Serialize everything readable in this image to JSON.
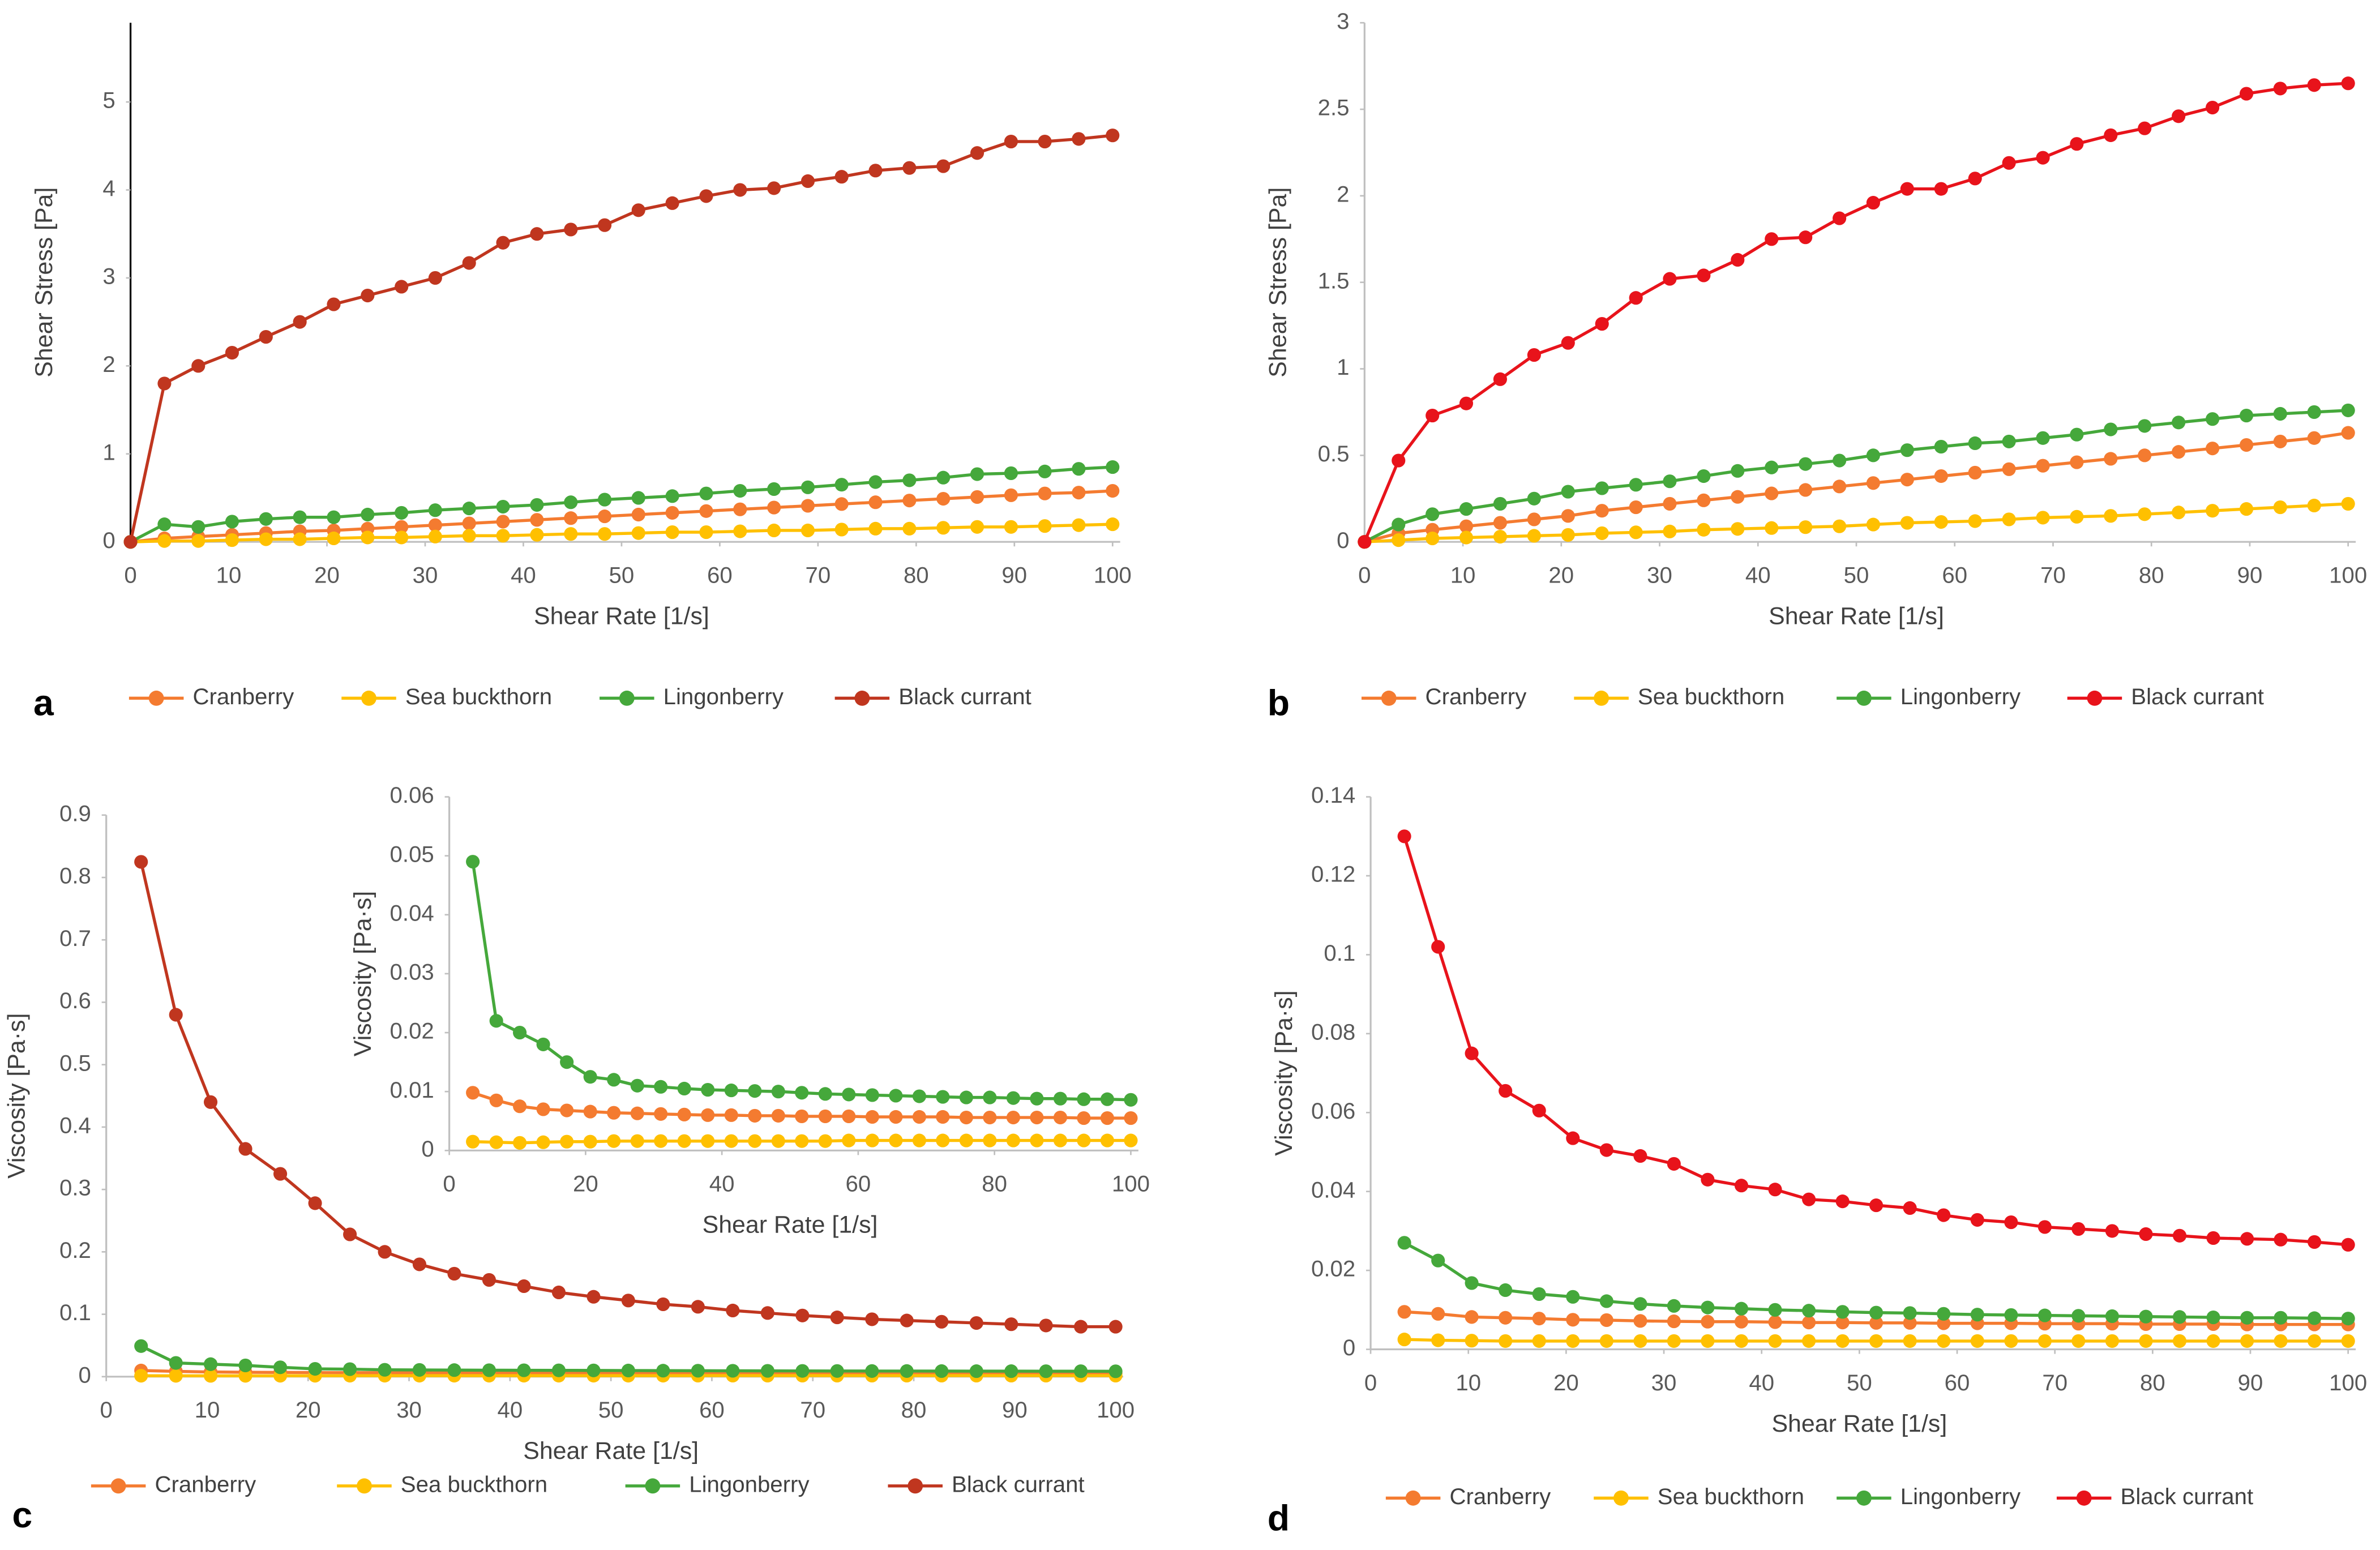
{
  "chart_data": [
    {
      "type": "line",
      "panel_label": "a",
      "x_label": "Shear Rate [1/s]",
      "y_label": "Shear Stress [Pa]",
      "x": [
        0,
        3.45,
        6.9,
        10.34,
        13.79,
        17.24,
        20.69,
        24.14,
        27.59,
        31.03,
        34.48,
        37.93,
        41.38,
        44.83,
        48.28,
        51.72,
        55.17,
        58.62,
        62.07,
        65.52,
        68.97,
        72.41,
        75.86,
        79.31,
        82.76,
        86.21,
        89.66,
        93.1,
        96.55,
        100
      ],
      "xlim": [
        0,
        100
      ],
      "xticks": [
        0,
        10,
        20,
        30,
        40,
        50,
        60,
        70,
        80,
        90,
        100
      ],
      "ylim": [
        0,
        5.9
      ],
      "yticks": [
        0,
        1,
        2,
        3,
        4,
        5
      ],
      "series": [
        {
          "name": "Cranberry",
          "color": "#F47B30",
          "values": [
            0,
            0.04,
            0.06,
            0.08,
            0.1,
            0.12,
            0.13,
            0.15,
            0.17,
            0.19,
            0.21,
            0.23,
            0.25,
            0.27,
            0.29,
            0.31,
            0.33,
            0.35,
            0.37,
            0.39,
            0.41,
            0.43,
            0.45,
            0.47,
            0.49,
            0.51,
            0.53,
            0.55,
            0.56,
            0.58
          ]
        },
        {
          "name": "Sea buckthorn",
          "color": "#FFC000",
          "values": [
            0,
            0.01,
            0.01,
            0.02,
            0.03,
            0.03,
            0.04,
            0.05,
            0.05,
            0.06,
            0.07,
            0.07,
            0.08,
            0.09,
            0.09,
            0.1,
            0.11,
            0.11,
            0.12,
            0.13,
            0.13,
            0.14,
            0.15,
            0.15,
            0.16,
            0.17,
            0.17,
            0.18,
            0.19,
            0.2
          ]
        },
        {
          "name": "Lingonberry",
          "color": "#45A83B",
          "values": [
            0,
            0.2,
            0.17,
            0.23,
            0.26,
            0.28,
            0.28,
            0.31,
            0.33,
            0.36,
            0.38,
            0.4,
            0.42,
            0.45,
            0.48,
            0.5,
            0.52,
            0.55,
            0.58,
            0.6,
            0.62,
            0.65,
            0.68,
            0.7,
            0.73,
            0.77,
            0.78,
            0.8,
            0.83,
            0.85
          ]
        },
        {
          "name": "Black currant",
          "color": "#C0361F",
          "values": [
            0,
            1.8,
            2.0,
            2.15,
            2.33,
            2.5,
            2.7,
            2.8,
            2.9,
            3.0,
            3.17,
            3.4,
            3.5,
            3.55,
            3.6,
            3.77,
            3.85,
            3.93,
            4.0,
            4.02,
            4.1,
            4.15,
            4.22,
            4.25,
            4.27,
            4.42,
            4.55,
            4.55,
            4.58,
            4.62
          ]
        }
      ]
    },
    {
      "type": "line",
      "panel_label": "b",
      "x_label": "Shear Rate [1/s]",
      "y_label": "Shear Stress [Pa]",
      "x": [
        0,
        3.45,
        6.9,
        10.34,
        13.79,
        17.24,
        20.69,
        24.14,
        27.59,
        31.03,
        34.48,
        37.93,
        41.38,
        44.83,
        48.28,
        51.72,
        55.17,
        58.62,
        62.07,
        65.52,
        68.97,
        72.41,
        75.86,
        79.31,
        82.76,
        86.21,
        89.66,
        93.1,
        96.55,
        100
      ],
      "xlim": [
        0,
        100
      ],
      "xticks": [
        0,
        10,
        20,
        30,
        40,
        50,
        60,
        70,
        80,
        90,
        100
      ],
      "ylim": [
        0,
        3
      ],
      "yticks": [
        0,
        0.5,
        1,
        1.5,
        2,
        2.5,
        3
      ],
      "series": [
        {
          "name": "Cranberry",
          "color": "#F47B30",
          "values": [
            0,
            0.05,
            0.07,
            0.09,
            0.11,
            0.13,
            0.15,
            0.18,
            0.2,
            0.22,
            0.24,
            0.26,
            0.28,
            0.3,
            0.32,
            0.34,
            0.36,
            0.38,
            0.4,
            0.42,
            0.44,
            0.46,
            0.48,
            0.5,
            0.52,
            0.54,
            0.56,
            0.58,
            0.6,
            0.63
          ]
        },
        {
          "name": "Sea buckthorn",
          "color": "#FFC000",
          "values": [
            0,
            0.01,
            0.02,
            0.025,
            0.03,
            0.035,
            0.04,
            0.05,
            0.055,
            0.06,
            0.07,
            0.075,
            0.08,
            0.085,
            0.09,
            0.1,
            0.11,
            0.115,
            0.12,
            0.13,
            0.14,
            0.145,
            0.15,
            0.16,
            0.17,
            0.18,
            0.19,
            0.2,
            0.21,
            0.22
          ]
        },
        {
          "name": "Lingonberry",
          "color": "#45A83B",
          "values": [
            0,
            0.1,
            0.16,
            0.19,
            0.22,
            0.25,
            0.29,
            0.31,
            0.33,
            0.35,
            0.38,
            0.41,
            0.43,
            0.45,
            0.47,
            0.5,
            0.53,
            0.55,
            0.57,
            0.58,
            0.6,
            0.62,
            0.65,
            0.67,
            0.69,
            0.71,
            0.73,
            0.74,
            0.75,
            0.76
          ]
        },
        {
          "name": "Black currant",
          "color": "#E8131B",
          "values": [
            0,
            0.47,
            0.73,
            0.8,
            0.94,
            1.08,
            1.15,
            1.26,
            1.41,
            1.52,
            1.54,
            1.63,
            1.75,
            1.76,
            1.87,
            1.96,
            2.04,
            2.04,
            2.1,
            2.19,
            2.22,
            2.3,
            2.35,
            2.39,
            2.46,
            2.51,
            2.59,
            2.62,
            2.64,
            2.65
          ]
        }
      ]
    },
    {
      "type": "line",
      "panel_label": "c",
      "x_label": "Shear Rate [1/s]",
      "y_label": "Viscosity [Pa·s]",
      "x": [
        3.45,
        6.9,
        10.34,
        13.79,
        17.24,
        20.69,
        24.14,
        27.59,
        31.03,
        34.48,
        37.93,
        41.38,
        44.83,
        48.28,
        51.72,
        55.17,
        58.62,
        62.07,
        65.52,
        68.97,
        72.41,
        75.86,
        79.31,
        82.76,
        86.21,
        89.66,
        93.1,
        96.55,
        100
      ],
      "xlim": [
        0,
        100
      ],
      "xticks": [
        0,
        10,
        20,
        30,
        40,
        50,
        60,
        70,
        80,
        90,
        100
      ],
      "ylim": [
        0,
        0.9
      ],
      "yticks": [
        0,
        0.1,
        0.2,
        0.3,
        0.4,
        0.5,
        0.6,
        0.7,
        0.8,
        0.9
      ],
      "series": [
        {
          "name": "Cranberry",
          "color": "#F47B30",
          "values": [
            0.0098,
            0.0085,
            0.0075,
            0.007,
            0.0068,
            0.0066,
            0.0064,
            0.0063,
            0.0062,
            0.0061,
            0.006,
            0.006,
            0.0059,
            0.0059,
            0.0058,
            0.0058,
            0.0058,
            0.0057,
            0.0057,
            0.0057,
            0.0057,
            0.0056,
            0.0056,
            0.0056,
            0.0056,
            0.0056,
            0.0055,
            0.0055,
            0.0055
          ]
        },
        {
          "name": "Sea buckthorn",
          "color": "#FFC000",
          "values": [
            0.0015,
            0.0014,
            0.0013,
            0.0014,
            0.0015,
            0.0015,
            0.0016,
            0.0016,
            0.0016,
            0.0016,
            0.0016,
            0.0016,
            0.0016,
            0.0016,
            0.0016,
            0.0016,
            0.0017,
            0.0017,
            0.0017,
            0.0017,
            0.0017,
            0.0017,
            0.0017,
            0.0017,
            0.0017,
            0.0017,
            0.0017,
            0.0017,
            0.0017
          ]
        },
        {
          "name": "Lingonberry",
          "color": "#45A83B",
          "values": [
            0.049,
            0.022,
            0.02,
            0.018,
            0.015,
            0.0125,
            0.012,
            0.011,
            0.0108,
            0.0105,
            0.0103,
            0.0102,
            0.0101,
            0.01,
            0.0098,
            0.0096,
            0.0095,
            0.0094,
            0.0093,
            0.0092,
            0.0091,
            0.009,
            0.009,
            0.0089,
            0.0088,
            0.0088,
            0.0087,
            0.0087,
            0.0086
          ]
        },
        {
          "name": "Black currant",
          "color": "#C0361F",
          "values": [
            0.825,
            0.58,
            0.44,
            0.365,
            0.325,
            0.278,
            0.228,
            0.2,
            0.18,
            0.165,
            0.155,
            0.145,
            0.135,
            0.128,
            0.122,
            0.116,
            0.112,
            0.106,
            0.102,
            0.098,
            0.095,
            0.092,
            0.09,
            0.088,
            0.086,
            0.084,
            0.082,
            0.08,
            0.08
          ]
        }
      ],
      "inset": {
        "x_label": "Shear Rate [1/s]",
        "y_label": "Viscosity [Pa·s]",
        "xlim": [
          0,
          100
        ],
        "xticks": [
          0,
          20,
          40,
          60,
          80,
          100
        ],
        "ylim": [
          0,
          0.06
        ],
        "yticks": [
          0,
          0.01,
          0.02,
          0.03,
          0.04,
          0.05,
          0.06
        ]
      }
    },
    {
      "type": "line",
      "panel_label": "d",
      "x_label": "Shear Rate [1/s]",
      "y_label": "Viscosity [Pa·s]",
      "x": [
        3.45,
        6.9,
        10.34,
        13.79,
        17.24,
        20.69,
        24.14,
        27.59,
        31.03,
        34.48,
        37.93,
        41.38,
        44.83,
        48.28,
        51.72,
        55.17,
        58.62,
        62.07,
        65.52,
        68.97,
        72.41,
        75.86,
        79.31,
        82.76,
        86.21,
        89.66,
        93.1,
        96.55,
        100
      ],
      "xlim": [
        0,
        100
      ],
      "xticks": [
        0,
        10,
        20,
        30,
        40,
        50,
        60,
        70,
        80,
        90,
        100
      ],
      "ylim": [
        0,
        0.14
      ],
      "yticks": [
        0,
        0.02,
        0.04,
        0.06,
        0.08,
        0.1,
        0.12,
        0.14
      ],
      "series": [
        {
          "name": "Cranberry",
          "color": "#F47B30",
          "values": [
            0.0095,
            0.009,
            0.0082,
            0.008,
            0.0078,
            0.0075,
            0.0074,
            0.0072,
            0.0071,
            0.007,
            0.007,
            0.0069,
            0.0068,
            0.0068,
            0.0067,
            0.0067,
            0.0066,
            0.0066,
            0.0066,
            0.0065,
            0.0065,
            0.0065,
            0.0064,
            0.0064,
            0.0064,
            0.0063,
            0.0063,
            0.0063,
            0.0063
          ]
        },
        {
          "name": "Sea buckthorn",
          "color": "#FFC000",
          "values": [
            0.0025,
            0.0023,
            0.0022,
            0.0021,
            0.0021,
            0.0021,
            0.0021,
            0.0021,
            0.0021,
            0.0021,
            0.0021,
            0.0021,
            0.0021,
            0.0021,
            0.0021,
            0.0021,
            0.0021,
            0.0021,
            0.0021,
            0.0021,
            0.0021,
            0.0021,
            0.0021,
            0.0021,
            0.0021,
            0.0021,
            0.0021,
            0.0021,
            0.0021
          ]
        },
        {
          "name": "Lingonberry",
          "color": "#45A83B",
          "values": [
            0.027,
            0.0225,
            0.0168,
            0.015,
            0.014,
            0.0133,
            0.0122,
            0.0115,
            0.011,
            0.0106,
            0.0103,
            0.01,
            0.0098,
            0.0095,
            0.0093,
            0.0092,
            0.009,
            0.0088,
            0.0087,
            0.0086,
            0.0085,
            0.0084,
            0.0083,
            0.0082,
            0.0081,
            0.008,
            0.008,
            0.0079,
            0.0078
          ]
        },
        {
          "name": "Black currant",
          "color": "#E8131B",
          "values": [
            0.13,
            0.102,
            0.075,
            0.0655,
            0.0605,
            0.0535,
            0.0505,
            0.049,
            0.047,
            0.043,
            0.0415,
            0.0405,
            0.038,
            0.0375,
            0.0365,
            0.0358,
            0.034,
            0.0328,
            0.0322,
            0.031,
            0.0305,
            0.03,
            0.0292,
            0.0288,
            0.0282,
            0.028,
            0.0278,
            0.0272,
            0.0265
          ]
        }
      ]
    }
  ]
}
